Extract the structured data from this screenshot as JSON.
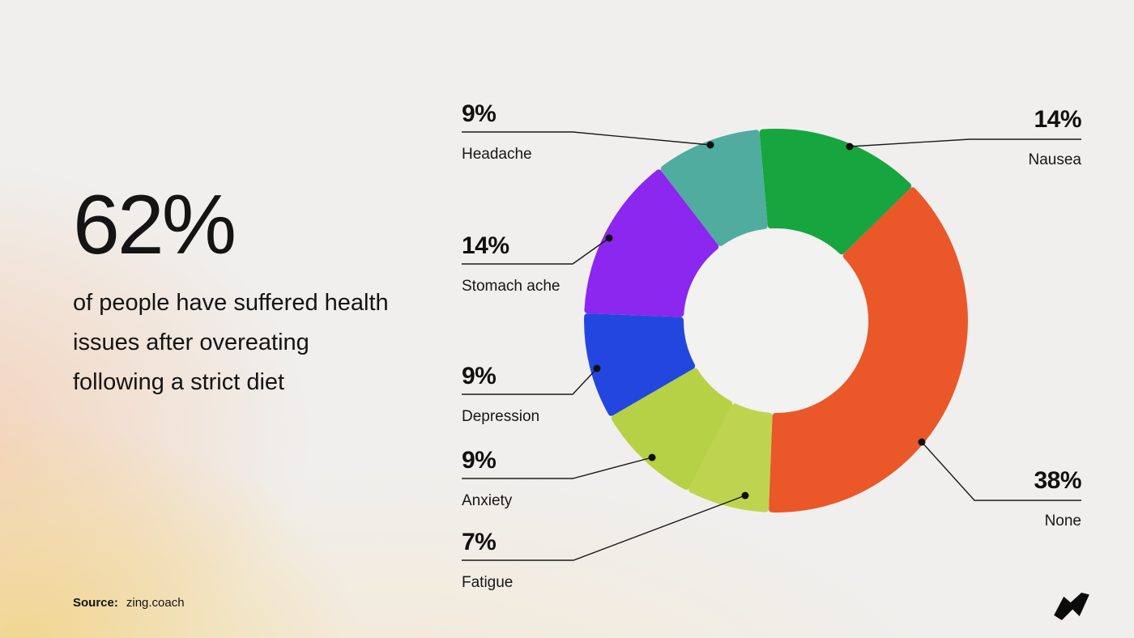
{
  "headline": {
    "stat": "62%",
    "description": "of people have suffered health issues after overeating following a strict diet"
  },
  "source": {
    "label": "Source:",
    "value": "zing.coach"
  },
  "logo": {
    "name": "zing-zigzag-logo",
    "color": "#0b0b0b"
  },
  "chart_data": {
    "type": "pie",
    "subtype": "donut",
    "title": "62% of people have suffered health issues after overeating following a strict diet",
    "unit": "%",
    "direction": "clockwise",
    "start_angle_deg": -5,
    "legend_position": "callouts-around-donut",
    "hole_color": "#f2f2f0",
    "segments": [
      {
        "label": "Nausea",
        "value": 14,
        "color": "#17a53f"
      },
      {
        "label": "None",
        "value": 38,
        "color": "#ea5728"
      },
      {
        "label": "Fatigue",
        "value": 7,
        "color": "#bed44f"
      },
      {
        "label": "Anxiety",
        "value": 9,
        "color": "#b7d146"
      },
      {
        "label": "Depression",
        "value": 9,
        "color": "#2347de"
      },
      {
        "label": "Stomach ache",
        "value": 14,
        "color": "#8b27ee"
      },
      {
        "label": "Headache",
        "value": 9,
        "color": "#50ac9e"
      }
    ],
    "callouts": [
      {
        "pct": "9%",
        "label": "Headache"
      },
      {
        "pct": "14%",
        "label": "Nausea"
      },
      {
        "pct": "14%",
        "label": "Stomach ache"
      },
      {
        "pct": "9%",
        "label": "Depression"
      },
      {
        "pct": "9%",
        "label": "Anxiety"
      },
      {
        "pct": "7%",
        "label": "Fatigue"
      },
      {
        "pct": "38%",
        "label": "None"
      }
    ]
  }
}
